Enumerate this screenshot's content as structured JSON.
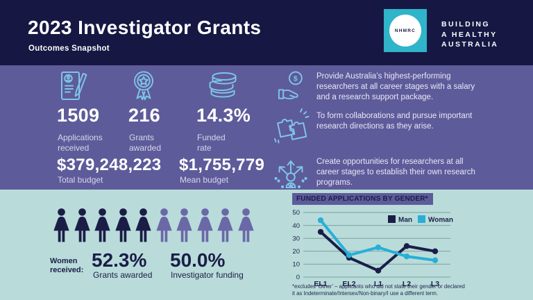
{
  "header": {
    "title": "2023 Investigator Grants",
    "subtitle": "Outcomes Snapshot",
    "logo": {
      "text": "NHMRC",
      "tagline_lines": [
        "BUILDING",
        "A HEALTHY",
        "AUSTRALIA"
      ]
    }
  },
  "stats": {
    "row1": [
      {
        "icon": "application-icon",
        "value": "1509",
        "label": "Applications received"
      },
      {
        "icon": "award-icon",
        "value": "216",
        "label": "Grants awarded"
      },
      {
        "icon": "coins-icon",
        "value": "14.3%",
        "label": "Funded rate"
      }
    ],
    "row2": [
      {
        "value": "$379,248,223",
        "label": "Total budget"
      },
      {
        "value": "$1,755,779",
        "label": "Mean budget"
      }
    ]
  },
  "purposes": [
    {
      "icon": "hand-money-icon",
      "text": "Provide Australia’s highest-performing researchers at all career stages with a salary and a research support package."
    },
    {
      "icon": "collaboration-icon",
      "text": "To form collaborations and pursue important research directions as they arise."
    },
    {
      "icon": "opportunities-icon",
      "text": "Create opportunities for researchers at all career stages to establish their own research programs."
    }
  ],
  "women": {
    "pictogram": {
      "total": 10,
      "dark_count": 5,
      "purple_count": 5,
      "dark_color": "#1b1d47",
      "purple_color": "#6b68a8"
    },
    "label": "Women received:",
    "stats": [
      {
        "value": "52.3%",
        "label": "Grants awarded"
      },
      {
        "value": "50.0%",
        "label": "Investigator funding"
      }
    ]
  },
  "chart_data": {
    "type": "line",
    "title": "FUNDED APPLICATIONS BY GENDER*",
    "categories": [
      "EL1",
      "EL2",
      "L1",
      "L2",
      "L3"
    ],
    "series": [
      {
        "name": "Man",
        "color": "#1b1d47",
        "values": [
          35,
          15,
          5,
          24,
          20
        ]
      },
      {
        "name": "Woman",
        "color": "#29afd6",
        "values": [
          44,
          17,
          23,
          16,
          13
        ]
      }
    ],
    "ylim": [
      0,
      50
    ],
    "yticks": [
      0,
      10,
      20,
      30,
      40,
      50
    ],
    "grid": true,
    "legend_position": "top-right",
    "footnote_lines": [
      "*excludes ‘Other’ – applicants who did not state their gender or declared",
      "it as Indeterminate/Intersex/Non-binary/I use a different term."
    ]
  },
  "colors": {
    "header_bg": "#161843",
    "stats_band_bg": "#5e5b9a",
    "outcomes_band_bg": "#b9dcda",
    "icon_stroke": "#7fc5e6",
    "logo_teal": "#2fb4c9",
    "navy_text": "#1b1d47",
    "man_line": "#1b1d47",
    "woman_line": "#29afd6",
    "gridline": "#7ca0a0"
  }
}
